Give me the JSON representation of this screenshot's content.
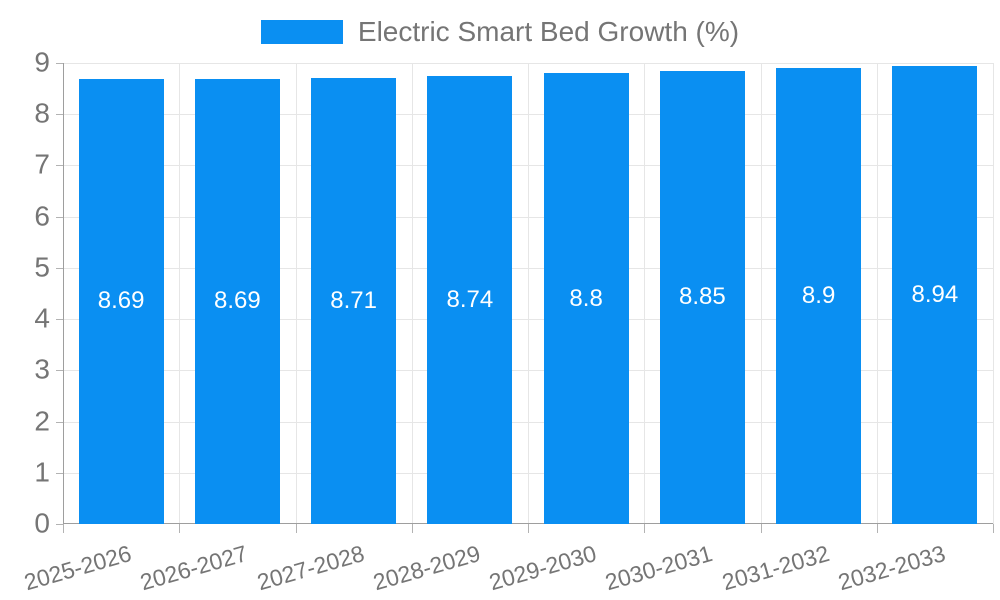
{
  "chart_data": {
    "type": "bar",
    "title": "Electric Smart Bed Growth (%)",
    "categories": [
      "2025-2026",
      "2026-2027",
      "2027-2028",
      "2028-2029",
      "2029-2030",
      "2030-2031",
      "2031-2032",
      "2032-2033"
    ],
    "values": [
      8.69,
      8.69,
      8.71,
      8.74,
      8.8,
      8.85,
      8.9,
      8.94
    ],
    "value_labels": [
      "8.69",
      "8.69",
      "8.71",
      "8.74",
      "8.8",
      "8.85",
      "8.9",
      "8.94"
    ],
    "xlabel": "",
    "ylabel": "",
    "ylim": [
      0,
      9
    ],
    "ytick_step": 1,
    "yticks": [
      "0",
      "1",
      "2",
      "3",
      "4",
      "5",
      "6",
      "7",
      "8",
      "9"
    ],
    "grid": "on",
    "legend_position": "top-center",
    "bar_color": "#0a8ff2",
    "value_label_color": "#ffffff",
    "axis_text_color": "#757575",
    "grid_color": "#e6e6e6",
    "axis_line_color": "#9e9e9e",
    "tick_color": "#b3b3b3"
  }
}
